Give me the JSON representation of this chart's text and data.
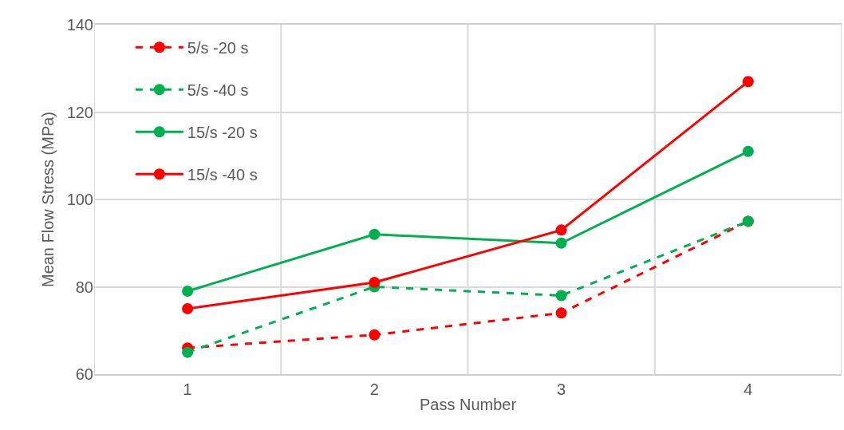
{
  "chart_data": {
    "type": "line",
    "xlabel": "Pass Number",
    "ylabel": "Mean Flow Stress (MPa)",
    "categories": [
      "1",
      "2",
      "3",
      "4"
    ],
    "ylim": [
      60,
      140
    ],
    "yticks": [
      60,
      80,
      100,
      120,
      140
    ],
    "grid": true,
    "legend": "top left",
    "marker": "circle",
    "series": [
      {
        "name": "5/s -20 s",
        "color": "#ff0000",
        "line_style": "dashed",
        "values": [
          66,
          69,
          74,
          95
        ]
      },
      {
        "name": "5/s -40 s",
        "color": "#00b050",
        "line_style": "dashed",
        "values": [
          65,
          80,
          78,
          95
        ]
      },
      {
        "name": "15/s -20 s",
        "color": "#00b050",
        "line_style": "solid",
        "values": [
          79,
          92,
          90,
          111
        ]
      },
      {
        "name": "15/s -40 s",
        "color": "#ff0000",
        "line_style": "solid",
        "values": [
          75,
          81,
          93,
          127
        ]
      }
    ]
  }
}
